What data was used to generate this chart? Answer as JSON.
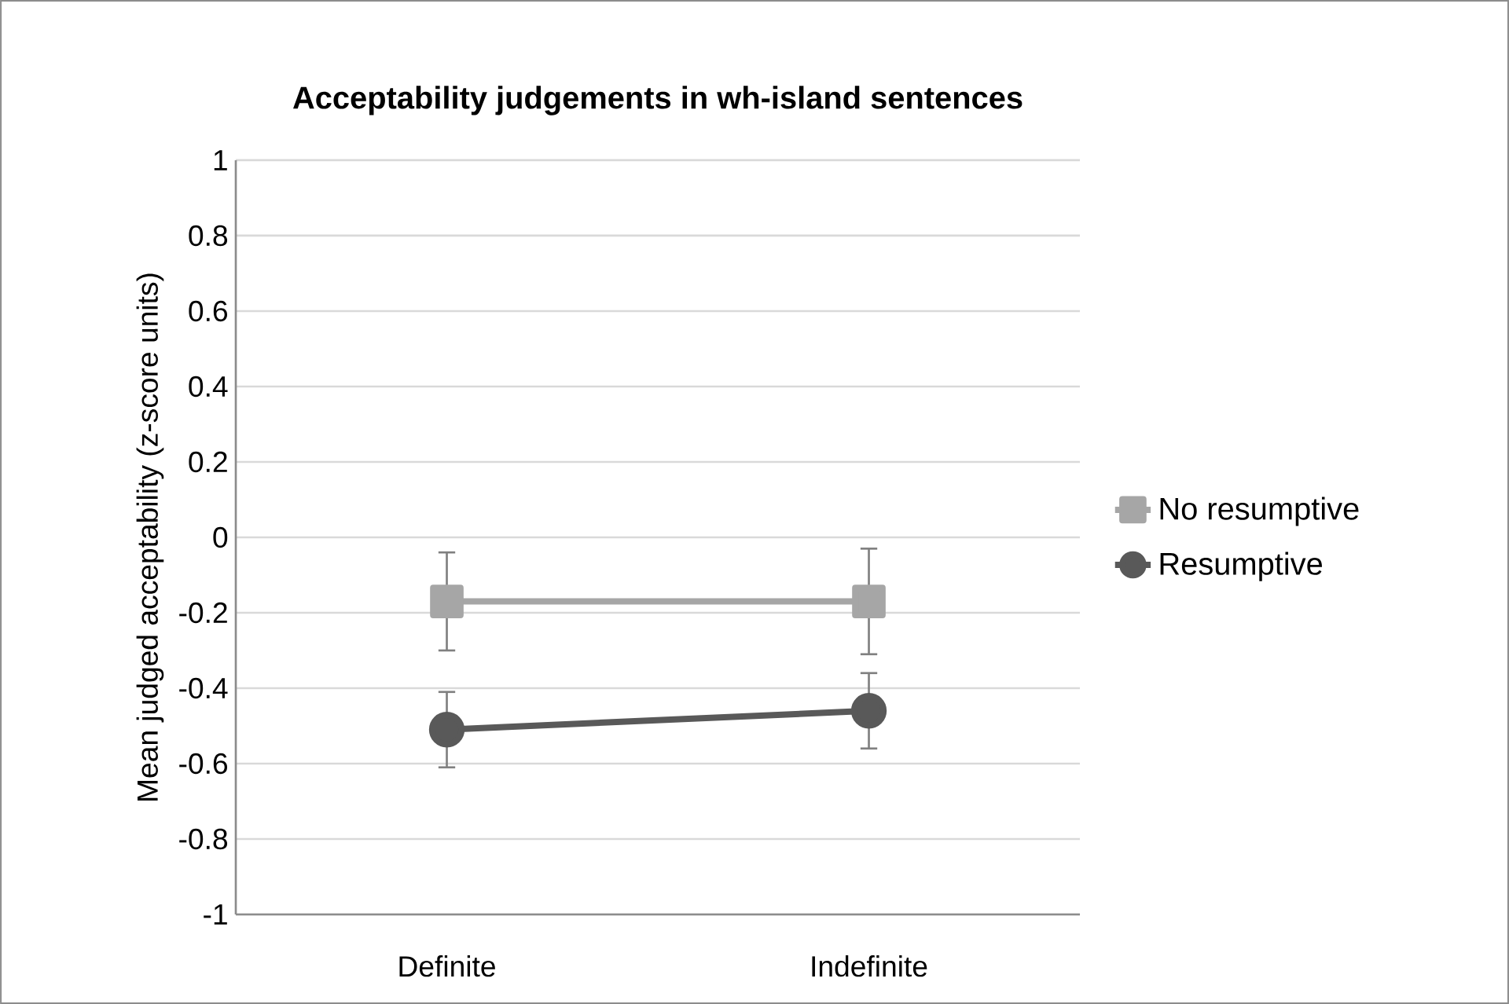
{
  "chart_data": {
    "type": "line",
    "title": "Acceptability judgements in wh-island sentences",
    "ylabel": "Mean judged acceptability (z-score units)",
    "categories": [
      "Definite",
      "Indefinite"
    ],
    "series": [
      {
        "name": "No resumptive",
        "color": "#a6a6a6",
        "marker": "square",
        "values": [
          -0.17,
          -0.17
        ],
        "errors": [
          0.13,
          0.14
        ]
      },
      {
        "name": "Resumptive",
        "color": "#595959",
        "marker": "circle",
        "values": [
          -0.51,
          -0.46
        ],
        "errors": [
          0.1,
          0.1
        ]
      }
    ],
    "ylim": [
      -1,
      1
    ],
    "yticks": [
      -1,
      -0.8,
      -0.6,
      -0.4,
      -0.2,
      0,
      0.2,
      0.4,
      0.6,
      0.8,
      1
    ],
    "grid": "y",
    "legend": "right"
  }
}
